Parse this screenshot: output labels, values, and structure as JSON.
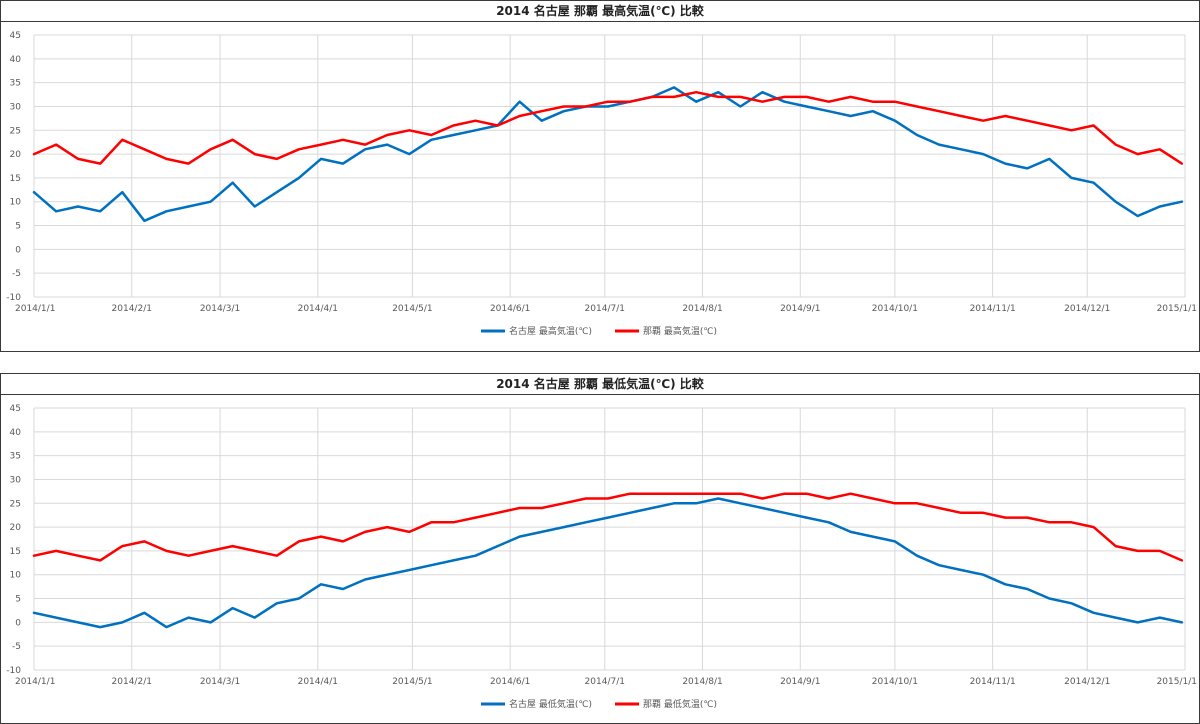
{
  "charts": [
    {
      "title": "2014 名古屋 那覇 最高気温(℃) 比較",
      "chart_data": {
        "type": "line",
        "title": "2014 名古屋 那覇 最高気温(℃) 比較",
        "xlabel": "",
        "ylabel": "",
        "ylim": [
          -10,
          45
        ],
        "yticks": [
          "45",
          "40",
          "35",
          "30",
          "25",
          "20",
          "15",
          "10",
          "5",
          "0",
          "-5",
          "-10"
        ],
        "xticks": [
          "2014/1/1",
          "2014/2/1",
          "2014/3/1",
          "2014/4/1",
          "2014/5/1",
          "2014/6/1",
          "2014/7/1",
          "2014/8/1",
          "2014/9/1",
          "2014/10/1",
          "2014/11/1",
          "2014/12/1",
          "2015/1/1"
        ],
        "grid": true,
        "legend_position": "bottom",
        "series": [
          {
            "name": "名古屋 最高気温(℃)",
            "color": "#0070c0",
            "x": [
              "2014/1/1",
              "2014/1/8",
              "2014/1/15",
              "2014/1/22",
              "2014/1/29",
              "2014/2/5",
              "2014/2/12",
              "2014/2/19",
              "2014/2/26",
              "2014/3/5",
              "2014/3/12",
              "2014/3/19",
              "2014/3/26",
              "2014/4/2",
              "2014/4/9",
              "2014/4/16",
              "2014/4/23",
              "2014/4/30",
              "2014/5/7",
              "2014/5/14",
              "2014/5/21",
              "2014/5/28",
              "2014/6/4",
              "2014/6/11",
              "2014/6/18",
              "2014/6/25",
              "2014/7/2",
              "2014/7/9",
              "2014/7/16",
              "2014/7/23",
              "2014/7/30",
              "2014/8/6",
              "2014/8/13",
              "2014/8/20",
              "2014/8/27",
              "2014/9/3",
              "2014/9/10",
              "2014/9/17",
              "2014/9/24",
              "2014/10/1",
              "2014/10/8",
              "2014/10/15",
              "2014/10/22",
              "2014/10/29",
              "2014/11/5",
              "2014/11/12",
              "2014/11/19",
              "2014/11/26",
              "2014/12/3",
              "2014/12/10",
              "2014/12/17",
              "2014/12/24",
              "2014/12/31"
            ],
            "values": [
              12,
              8,
              9,
              8,
              12,
              6,
              8,
              9,
              10,
              14,
              9,
              12,
              15,
              19,
              18,
              21,
              22,
              20,
              23,
              24,
              25,
              26,
              31,
              27,
              29,
              30,
              30,
              31,
              32,
              34,
              31,
              33,
              30,
              33,
              31,
              30,
              29,
              28,
              29,
              27,
              24,
              22,
              21,
              20,
              18,
              17,
              19,
              15,
              14,
              10,
              7,
              9,
              10
            ]
          },
          {
            "name": "那覇 最高気温(℃)",
            "color": "#ff0000",
            "x": [
              "2014/1/1",
              "2014/1/8",
              "2014/1/15",
              "2014/1/22",
              "2014/1/29",
              "2014/2/5",
              "2014/2/12",
              "2014/2/19",
              "2014/2/26",
              "2014/3/5",
              "2014/3/12",
              "2014/3/19",
              "2014/3/26",
              "2014/4/2",
              "2014/4/9",
              "2014/4/16",
              "2014/4/23",
              "2014/4/30",
              "2014/5/7",
              "2014/5/14",
              "2014/5/21",
              "2014/5/28",
              "2014/6/4",
              "2014/6/11",
              "2014/6/18",
              "2014/6/25",
              "2014/7/2",
              "2014/7/9",
              "2014/7/16",
              "2014/7/23",
              "2014/7/30",
              "2014/8/6",
              "2014/8/13",
              "2014/8/20",
              "2014/8/27",
              "2014/9/3",
              "2014/9/10",
              "2014/9/17",
              "2014/9/24",
              "2014/10/1",
              "2014/10/8",
              "2014/10/15",
              "2014/10/22",
              "2014/10/29",
              "2014/11/5",
              "2014/11/12",
              "2014/11/19",
              "2014/11/26",
              "2014/12/3",
              "2014/12/10",
              "2014/12/17",
              "2014/12/24",
              "2014/12/31"
            ],
            "values": [
              20,
              22,
              19,
              18,
              23,
              21,
              19,
              18,
              21,
              23,
              20,
              19,
              21,
              22,
              23,
              22,
              24,
              25,
              24,
              26,
              27,
              26,
              28,
              29,
              30,
              30,
              31,
              31,
              32,
              32,
              33,
              32,
              32,
              31,
              32,
              32,
              31,
              32,
              31,
              31,
              30,
              29,
              28,
              27,
              28,
              27,
              26,
              25,
              26,
              22,
              20,
              21,
              18
            ]
          }
        ]
      },
      "legend": [
        "名古屋 最高気温(℃)",
        "那覇 最高気温(℃)"
      ]
    },
    {
      "title": "2014 名古屋 那覇 最低気温(℃) 比較",
      "chart_data": {
        "type": "line",
        "title": "2014 名古屋 那覇 最低気温(℃) 比較",
        "xlabel": "",
        "ylabel": "",
        "ylim": [
          -10,
          45
        ],
        "yticks": [
          "45",
          "40",
          "35",
          "30",
          "25",
          "20",
          "15",
          "10",
          "5",
          "0",
          "-5",
          "-10"
        ],
        "xticks": [
          "2014/1/1",
          "2014/2/1",
          "2014/3/1",
          "2014/4/1",
          "2014/5/1",
          "2014/6/1",
          "2014/7/1",
          "2014/8/1",
          "2014/9/1",
          "2014/10/1",
          "2014/11/1",
          "2014/12/1",
          "2015/1/1"
        ],
        "grid": true,
        "legend_position": "bottom",
        "series": [
          {
            "name": "名古屋 最低気温(℃)",
            "color": "#0070c0",
            "x": [
              "2014/1/1",
              "2014/1/8",
              "2014/1/15",
              "2014/1/22",
              "2014/1/29",
              "2014/2/5",
              "2014/2/12",
              "2014/2/19",
              "2014/2/26",
              "2014/3/5",
              "2014/3/12",
              "2014/3/19",
              "2014/3/26",
              "2014/4/2",
              "2014/4/9",
              "2014/4/16",
              "2014/4/23",
              "2014/4/30",
              "2014/5/7",
              "2014/5/14",
              "2014/5/21",
              "2014/5/28",
              "2014/6/4",
              "2014/6/11",
              "2014/6/18",
              "2014/6/25",
              "2014/7/2",
              "2014/7/9",
              "2014/7/16",
              "2014/7/23",
              "2014/7/30",
              "2014/8/6",
              "2014/8/13",
              "2014/8/20",
              "2014/8/27",
              "2014/9/3",
              "2014/9/10",
              "2014/9/17",
              "2014/9/24",
              "2014/10/1",
              "2014/10/8",
              "2014/10/15",
              "2014/10/22",
              "2014/10/29",
              "2014/11/5",
              "2014/11/12",
              "2014/11/19",
              "2014/11/26",
              "2014/12/3",
              "2014/12/10",
              "2014/12/17",
              "2014/12/24",
              "2014/12/31"
            ],
            "values": [
              2,
              1,
              0,
              -1,
              0,
              2,
              -1,
              1,
              0,
              3,
              1,
              4,
              5,
              8,
              7,
              9,
              10,
              11,
              12,
              13,
              14,
              16,
              18,
              19,
              20,
              21,
              22,
              23,
              24,
              25,
              25,
              26,
              25,
              24,
              23,
              22,
              21,
              19,
              18,
              17,
              14,
              12,
              11,
              10,
              8,
              7,
              5,
              4,
              2,
              1,
              0,
              1,
              0
            ]
          },
          {
            "name": "那覇 最低気温(℃)",
            "color": "#ff0000",
            "x": [
              "2014/1/1",
              "2014/1/8",
              "2014/1/15",
              "2014/1/22",
              "2014/1/29",
              "2014/2/5",
              "2014/2/12",
              "2014/2/19",
              "2014/2/26",
              "2014/3/5",
              "2014/3/12",
              "2014/3/19",
              "2014/3/26",
              "2014/4/2",
              "2014/4/9",
              "2014/4/16",
              "2014/4/23",
              "2014/4/30",
              "2014/5/7",
              "2014/5/14",
              "2014/5/21",
              "2014/5/28",
              "2014/6/4",
              "2014/6/11",
              "2014/6/18",
              "2014/6/25",
              "2014/7/2",
              "2014/7/9",
              "2014/7/16",
              "2014/7/23",
              "2014/7/30",
              "2014/8/6",
              "2014/8/13",
              "2014/8/20",
              "2014/8/27",
              "2014/9/3",
              "2014/9/10",
              "2014/9/17",
              "2014/9/24",
              "2014/10/1",
              "2014/10/8",
              "2014/10/15",
              "2014/10/22",
              "2014/10/29",
              "2014/11/5",
              "2014/11/12",
              "2014/11/19",
              "2014/11/26",
              "2014/12/3",
              "2014/12/10",
              "2014/12/17",
              "2014/12/24",
              "2014/12/31"
            ],
            "values": [
              14,
              15,
              14,
              13,
              16,
              17,
              15,
              14,
              15,
              16,
              15,
              14,
              17,
              18,
              17,
              19,
              20,
              19,
              21,
              21,
              22,
              23,
              24,
              24,
              25,
              26,
              26,
              27,
              27,
              27,
              27,
              27,
              27,
              26,
              27,
              27,
              26,
              27,
              26,
              25,
              25,
              24,
              23,
              23,
              22,
              22,
              21,
              21,
              20,
              16,
              15,
              15,
              13
            ]
          }
        ]
      },
      "legend": [
        "名古屋 最低気温(℃)",
        "那覇 最低気温(℃)"
      ]
    }
  ]
}
